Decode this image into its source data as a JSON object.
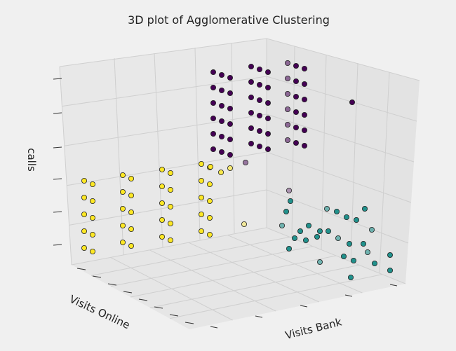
{
  "chart_data": {
    "type": "scatter",
    "title": "3D plot of Agglomerative Clustering",
    "xlabel": "Visits Bank",
    "ylabel": "Visits Online",
    "zlabel": "calls",
    "grid": true,
    "colormap": {
      "low": "#440154",
      "mid": "#21918c",
      "high": "#fde725"
    },
    "series": [
      {
        "cluster": 0,
        "color": "#440154",
        "points_yz": {
          "online": [
            0,
            1,
            2,
            3,
            4,
            5
          ],
          "calls_range": [
            0,
            10
          ]
        }
      },
      {
        "cluster": 1,
        "color": "#21918c",
        "points_yz": {
          "online": [
            5,
            6,
            7,
            8,
            9,
            10,
            11,
            12,
            13,
            14,
            15
          ],
          "calls_range": [
            0,
            4
          ]
        }
      },
      {
        "cluster": 2,
        "color": "#fde725",
        "points_yz": {
          "online": [
            0,
            1,
            2,
            3,
            4
          ],
          "calls_range": [
            5,
            10
          ]
        }
      }
    ]
  }
}
